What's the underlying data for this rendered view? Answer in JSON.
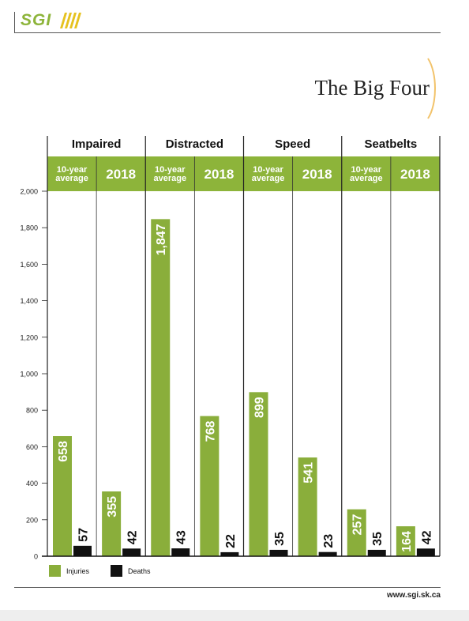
{
  "logo": {
    "text": "SGI"
  },
  "page": {
    "title": "The Big Four",
    "footer_url": "www.sgi.sk.ca"
  },
  "colors": {
    "injuries": "#8aae3b",
    "deaths": "#111111",
    "header_band": "#8db43a",
    "subheader_band": "#a8c96a"
  },
  "chart_data": {
    "type": "bar",
    "groups": [
      "Impaired",
      "Distracted",
      "Speed",
      "Seatbelts"
    ],
    "subcategories": [
      "10-year average",
      "2018"
    ],
    "subcategory_labels": [
      [
        "10-year",
        "average"
      ],
      [
        "2018"
      ]
    ],
    "series": [
      {
        "name": "Injuries",
        "values": [
          658,
          355,
          1847,
          768,
          899,
          541,
          257,
          164
        ]
      },
      {
        "name": "Deaths",
        "values": [
          57,
          42,
          43,
          22,
          35,
          23,
          35,
          42
        ]
      }
    ],
    "value_labels": {
      "Injuries": [
        "658",
        "355",
        "1,847",
        "768",
        "899",
        "541",
        "257",
        "164"
      ],
      "Deaths": [
        "57",
        "42",
        "43",
        "22",
        "35",
        "23",
        "35",
        "42"
      ]
    },
    "yticks": [
      "0",
      "200",
      "400",
      "600",
      "800",
      "1,000",
      "1,200",
      "1,400",
      "1,600",
      "1,800",
      "2,000"
    ],
    "ylim": [
      0,
      2000
    ],
    "legend": [
      "Injuries",
      "Deaths"
    ],
    "legend_position": "bottom-left"
  }
}
